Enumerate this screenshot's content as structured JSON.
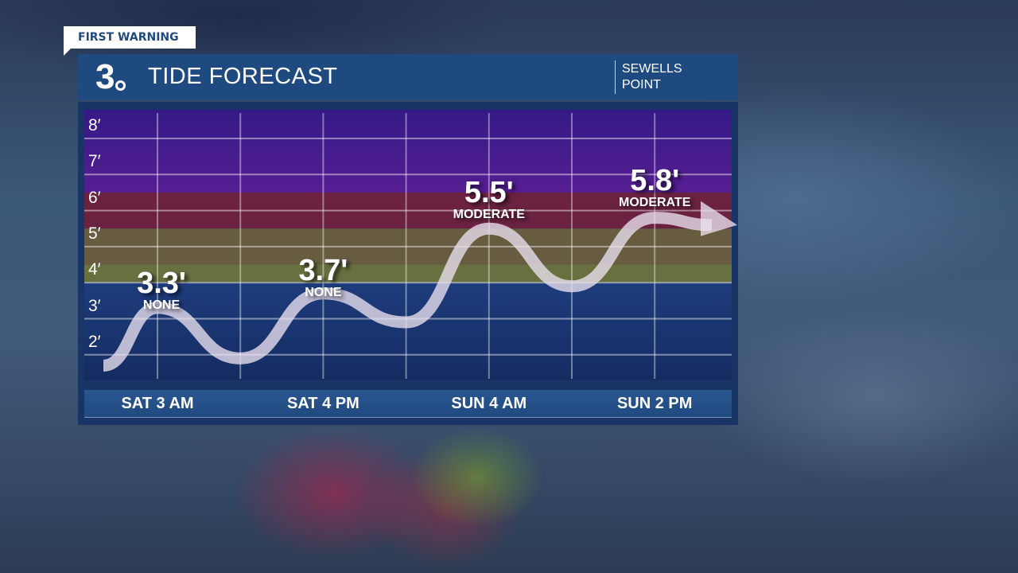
{
  "badge": "FIRST WARNING",
  "header": {
    "logo": "3",
    "title": "TIDE FORECAST",
    "location_line1": "SEWELLS",
    "location_line2": "POINT"
  },
  "chart_data": {
    "type": "line",
    "title": "TIDE FORECAST",
    "yticks": [
      "2′",
      "3′",
      "4′",
      "5′",
      "6′",
      "7′",
      "8′"
    ],
    "ytick_values": [
      2,
      3,
      4,
      5,
      6,
      7,
      8
    ],
    "ylim": [
      1.3,
      8.8
    ],
    "grid": true,
    "categories": [
      "SAT 3 AM",
      "SAT 4 PM",
      "SUN 4 AM",
      "SUN 2 PM"
    ],
    "labeled_points": [
      {
        "time": "SAT 3 AM",
        "value": 3.3,
        "label": "3.3'",
        "category": "NONE"
      },
      {
        "time": "SAT 4 PM",
        "value": 3.7,
        "label": "3.7'",
        "category": "NONE"
      },
      {
        "time": "SUN 4 AM",
        "value": 5.5,
        "label": "5.5'",
        "category": "MODERATE"
      },
      {
        "time": "SUN 2 PM",
        "value": 5.8,
        "label": "5.8'",
        "category": "MODERATE"
      }
    ],
    "curve_values": [
      1.7,
      3.3,
      1.9,
      3.7,
      2.9,
      5.5,
      3.9,
      5.8,
      5.6
    ],
    "bands": [
      {
        "from": 6.5,
        "to": 8.8,
        "color_top": "#341a86",
        "color_bottom": "#561e92"
      },
      {
        "from": 5.5,
        "to": 6.5,
        "color_top": "#6a2240",
        "color_bottom": "#6a2240"
      },
      {
        "from": 4.5,
        "to": 5.5,
        "color_top": "#675c40",
        "color_bottom": "#675c40"
      },
      {
        "from": 4.0,
        "to": 4.5,
        "color_top": "#687040",
        "color_bottom": "#687040"
      },
      {
        "from": 1.3,
        "to": 4.0,
        "color_top": "#1e3c7c",
        "color_bottom": "#152c62"
      }
    ]
  }
}
